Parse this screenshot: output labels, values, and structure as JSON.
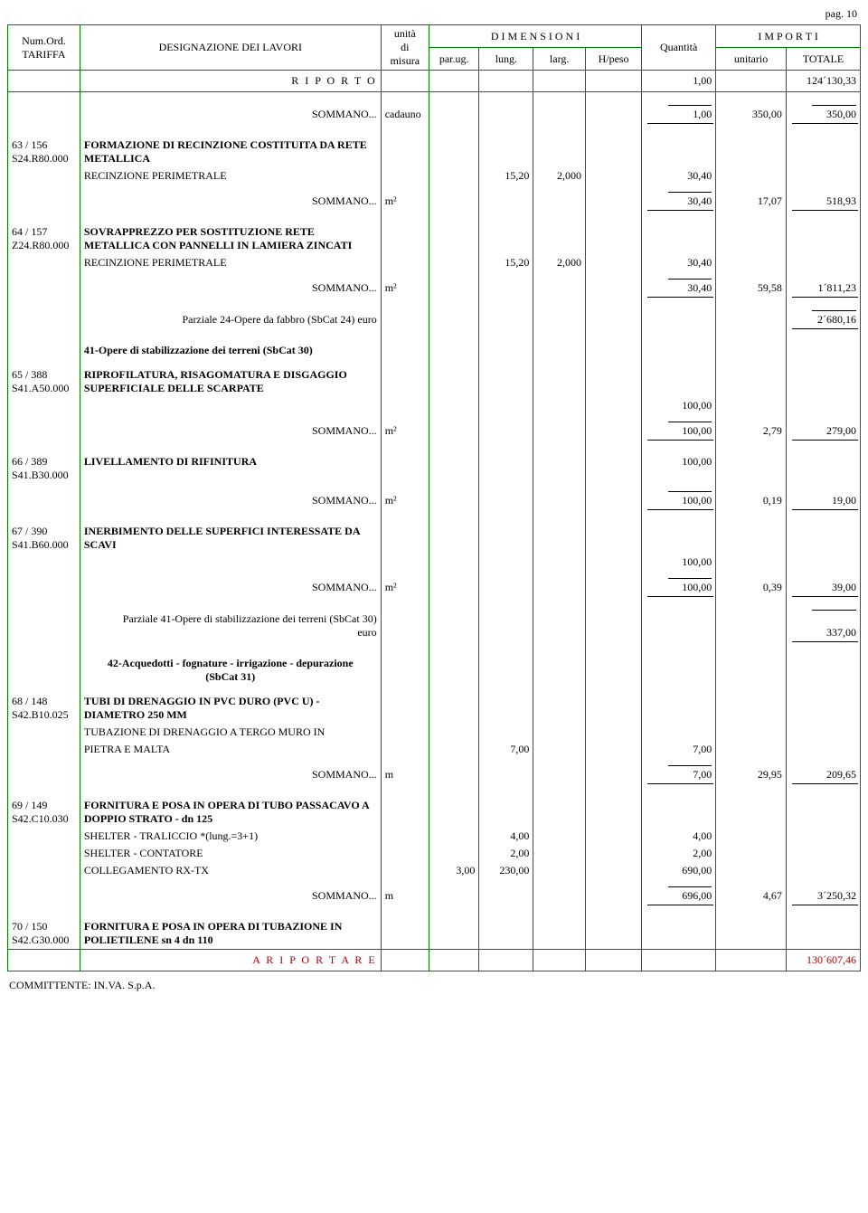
{
  "page_label": "pag. 10",
  "header": {
    "tariffa1": "Num.Ord.",
    "tariffa2": "TARIFFA",
    "designazione": "DESIGNAZIONE DEI LAVORI",
    "unita1": "unità",
    "unita2": "di",
    "unita3": "misura",
    "dimensioni": "D I M E N S I O N I",
    "parug": "par.ug.",
    "lung": "lung.",
    "larg": "larg.",
    "hpeso": "H/peso",
    "quantita": "Quantità",
    "importi": "I M P O R T I",
    "unitario": "unitario",
    "totale": "TOTALE"
  },
  "riporto": {
    "label": "R I P O R T O",
    "qty": "1,00",
    "totale": "124´130,33"
  },
  "sommano_label": "SOMMANO...",
  "rows": [
    {
      "sommano": {
        "unit": "cadauno",
        "qty": "1,00",
        "unitario": "350,00",
        "totale": "350,00"
      }
    },
    {
      "codes": [
        "63 / 156",
        "S24.R80.000"
      ],
      "desc_bold": "FORMAZIONE DI RECINZIONE COSTITUITA DA RETE METALLICA",
      "desc_lines": [
        {
          "text": "RECINZIONE PERIMETRALE",
          "lung": "15,20",
          "larg": "2,000",
          "qty": "30,40"
        }
      ],
      "sommano": {
        "unit": "m²",
        "qty": "30,40",
        "unitario": "17,07",
        "totale": "518,93"
      }
    },
    {
      "codes": [
        "64 / 157",
        "Z24.R80.000"
      ],
      "desc_bold": "SOVRAPPREZZO PER SOSTITUZIONE RETE METALLICA CON PANNELLI IN LAMIERA ZINCATI",
      "desc_lines": [
        {
          "text": "RECINZIONE PERIMETRALE",
          "lung": "15,20",
          "larg": "2,000",
          "qty": "30,40"
        }
      ],
      "sommano": {
        "unit": "m²",
        "qty": "30,40",
        "unitario": "59,58",
        "totale": "1´811,23"
      }
    }
  ],
  "parziale24": {
    "label": "Parziale 24-Opere da fabbro  (SbCat 24) euro",
    "totale": "2´680,16"
  },
  "cat41_title": "41-Opere di stabilizzazione dei terreni  (SbCat 30)",
  "rows2": [
    {
      "codes": [
        "65 / 388",
        "S41.A50.000"
      ],
      "desc_bold": "RIPROFILATURA, RISAGOMATURA E DISGAGGIO SUPERFICIALE DELLE SCARPATE",
      "qty": "100,00",
      "sommano": {
        "unit": "m²",
        "qty": "100,00",
        "unitario": "2,79",
        "totale": "279,00"
      }
    },
    {
      "codes": [
        "66 / 389",
        "S41.B30.000"
      ],
      "desc_bold": "LIVELLAMENTO DI RIFINITURA",
      "qty": "100,00",
      "sommano": {
        "unit": "m²",
        "qty": "100,00",
        "unitario": "0,19",
        "totale": "19,00"
      }
    },
    {
      "codes": [
        "67 / 390",
        "S41.B60.000"
      ],
      "desc_bold": "INERBIMENTO DELLE SUPERFICI INTERESSATE DA SCAVI",
      "qty": "100,00",
      "sommano": {
        "unit": "m²",
        "qty": "100,00",
        "unitario": "0,39",
        "totale": "39,00"
      }
    }
  ],
  "parziale41": {
    "label1": "Parziale 41-Opere di stabilizzazione dei terreni  (SbCat 30)",
    "label2": "euro",
    "totale": "337,00"
  },
  "cat42_title1": "42-Acquedotti - fognature - irrigazione - depurazione",
  "cat42_title2": "(SbCat 31)",
  "row68": {
    "codes": [
      "68 / 148",
      "S42.B10.025"
    ],
    "desc_bold": "TUBI DI DRENAGGIO IN PVC DURO (PVC U) - DIAMETRO 250 MM",
    "lines": [
      {
        "text1": "TUBAZIONE DI DRENAGGIO A TERGO MURO IN",
        "text2": "PIETRA E MALTA",
        "lung": "7,00",
        "qty": "7,00"
      }
    ],
    "sommano": {
      "unit": "m",
      "qty": "7,00",
      "unitario": "29,95",
      "totale": "209,65"
    }
  },
  "row69": {
    "codes": [
      "69 / 149",
      "S42.C10.030"
    ],
    "desc_bold": "FORNITURA E POSA IN OPERA DI TUBO PASSACAVO A DOPPIO STRATO - dn 125",
    "lines": [
      {
        "text": "SHELTER - TRALICCIO *(lung.=3+1)",
        "lung": "4,00",
        "qty": "4,00"
      },
      {
        "text": "SHELTER - CONTATORE",
        "lung": "2,00",
        "qty": "2,00"
      },
      {
        "text": "COLLEGAMENTO RX-TX",
        "parug": "3,00",
        "lung": "230,00",
        "qty": "690,00"
      }
    ],
    "sommano": {
      "unit": "m",
      "qty": "696,00",
      "unitario": "4,67",
      "totale": "3´250,32"
    }
  },
  "row70": {
    "codes": [
      "70 / 150",
      "S42.G30.000"
    ],
    "desc_bold": "FORNITURA E POSA IN OPERA DI TUBAZIONE IN POLIETILENE sn 4 dn 110"
  },
  "ariportare": {
    "label": "A   R I P O R T A R E",
    "totale": "130´607,46"
  },
  "committente": "COMMITTENTE: IN.VA. S.p.A."
}
